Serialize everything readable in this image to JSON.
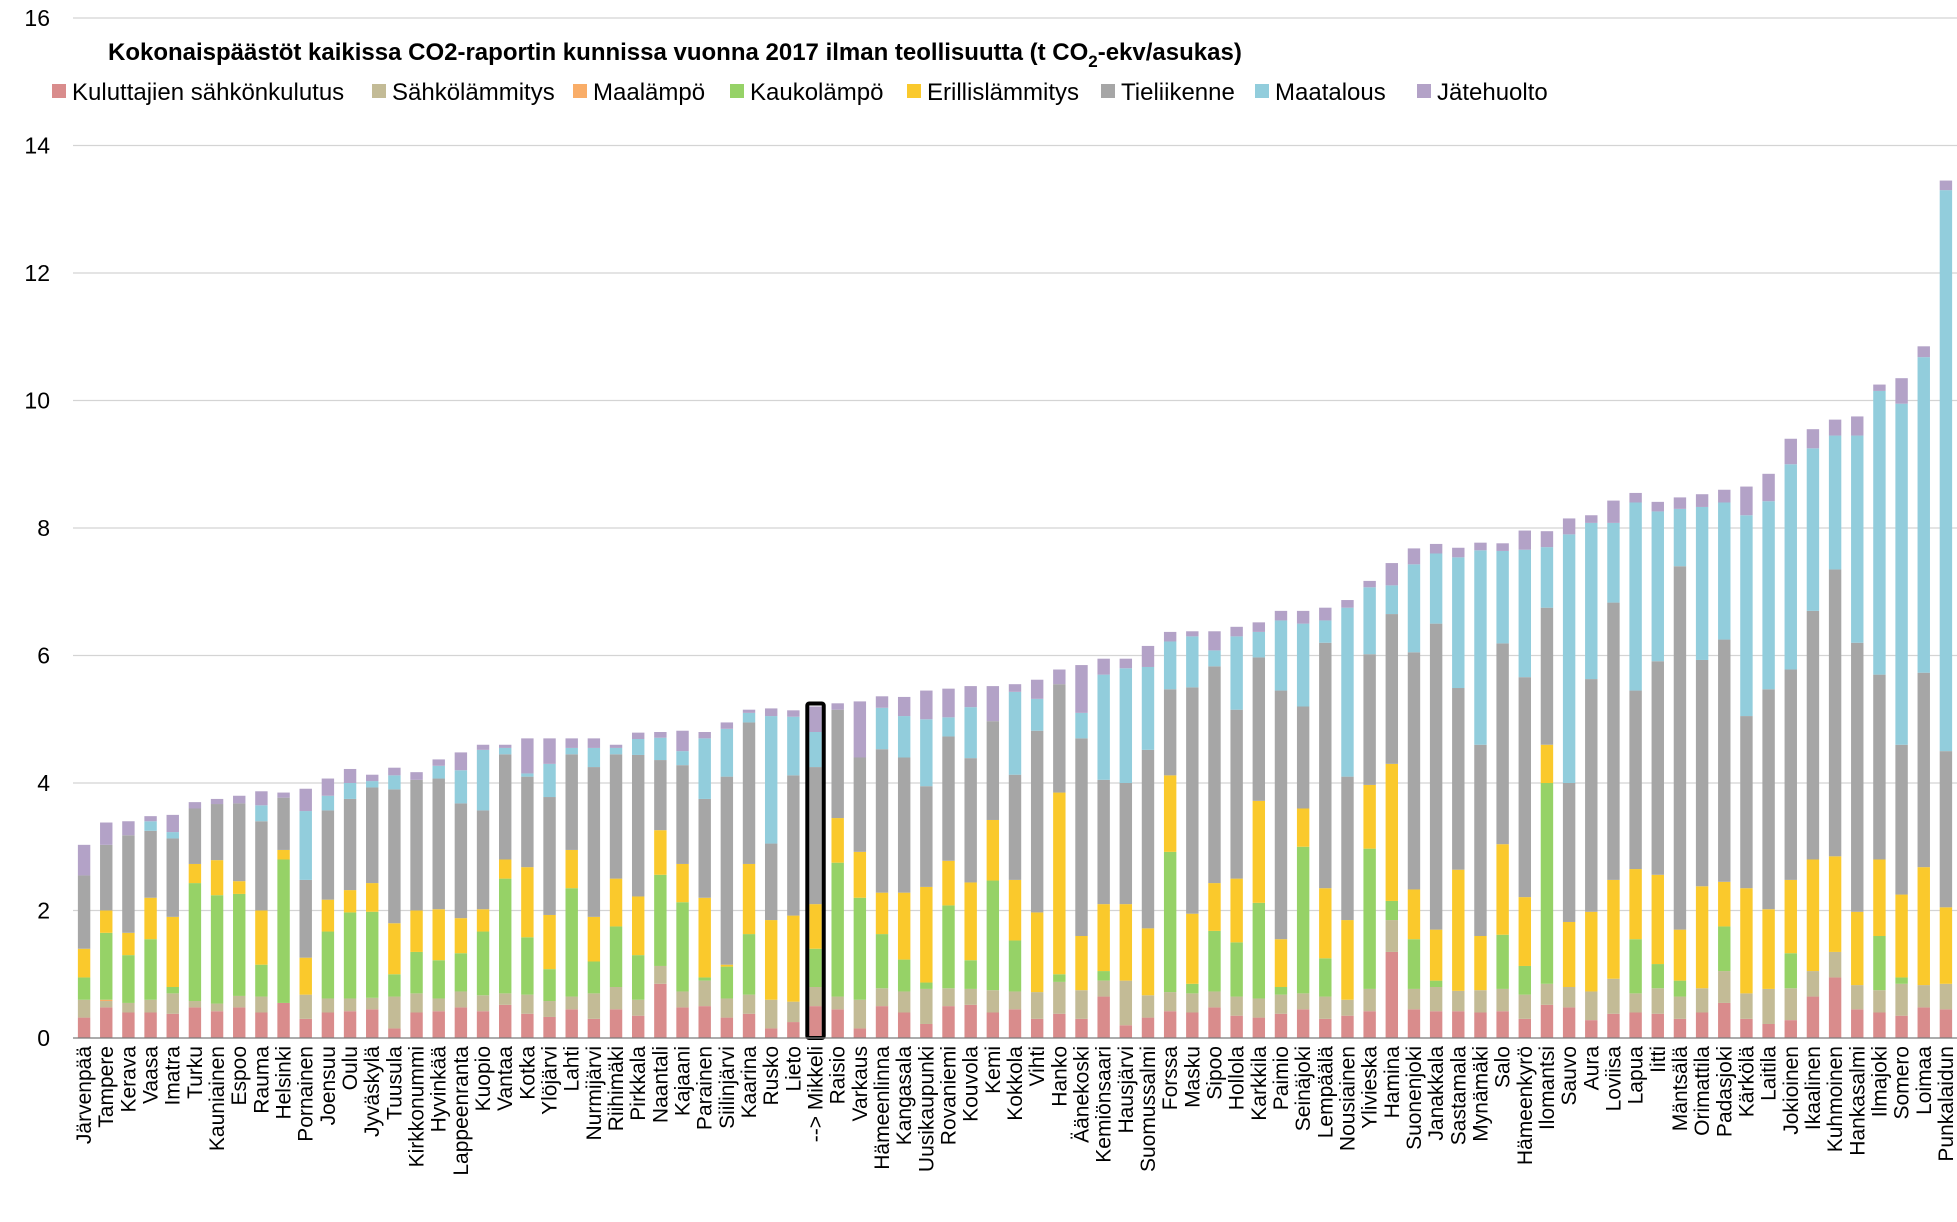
{
  "chart_data": {
    "type": "bar",
    "stacked": true,
    "title": "Kokonaispäästöt kaikissa CO2-raportin kunnissa vuonna 2017 ilman teollisuutta (t CO",
    "title_sub": "2",
    "title_end": "-ekv/asukas)",
    "ylim": [
      0,
      16
    ],
    "yticks": [
      0,
      2,
      4,
      6,
      8,
      10,
      12,
      14,
      16
    ],
    "grid": true,
    "legend_position": "top",
    "highlight_category": "--> Mikkeli",
    "series": [
      {
        "name": "Kuluttajien sähkönkulutus",
        "color": "#d98c8c"
      },
      {
        "name": "Sähkölämmitys",
        "color": "#c3bb96"
      },
      {
        "name": "Maalämpö",
        "color": "#f9ad68"
      },
      {
        "name": "Kaukolämpö",
        "color": "#96d267"
      },
      {
        "name": "Erillislämmitys",
        "color": "#fac92c"
      },
      {
        "name": "Tieliikenne",
        "color": "#a6a6a6"
      },
      {
        "name": "Maatalous",
        "color": "#92cddc"
      },
      {
        "name": "Jätehuolto",
        "color": "#b3a2c7"
      }
    ],
    "categories": [
      "Järvenpää",
      "Tampere",
      "Kerava",
      "Vaasa",
      "Imatra",
      "Turku",
      "Kauniainen",
      "Espoo",
      "Rauma",
      "Helsinki",
      "Pornainen",
      "Joensuu",
      "Oulu",
      "Jyväskylä",
      "Tuusula",
      "Kirkkonummi",
      "Hyvinkää",
      "Lappeenranta",
      "Kuopio",
      "Vantaa",
      "Kotka",
      "Ylöjärvi",
      "Lahti",
      "Nurmijärvi",
      "Riihimäki",
      "Pirkkala",
      "Naantali",
      "Kajaani",
      "Parainen",
      "Siilinjärvi",
      "Kaarina",
      "Rusko",
      "Lieto",
      "--> Mikkeli",
      "Raisio",
      "Varkaus",
      "Hämeenlinna",
      "Kangasala",
      "Uusikaupunki",
      "Rovaniemi",
      "Kouvola",
      "Kemi",
      "Kokkola",
      "Vihti",
      "Hanko",
      "Äänekoski",
      "Kemiönsaari",
      "Hausjärvi",
      "Suomussalmi",
      "Forssa",
      "Masku",
      "Sipoo",
      "Hollola",
      "Karkkila",
      "Paimio",
      "Seinäjoki",
      "Lempäälä",
      "Nousiainen",
      "Ylivieska",
      "Hamina",
      "Suonenjoki",
      "Janakkala",
      "Sastamala",
      "Mynämäki",
      "Salo",
      "Hämeenkyrö",
      "Ilomantsi",
      "Sauvo",
      "Aura",
      "Loviisa",
      "Lapua",
      "Iitti",
      "Mäntsälä",
      "Orimattila",
      "Padasjoki",
      "Kärkölä",
      "Laitila",
      "Jokioinen",
      "Ikaalinen",
      "Kuhmoinen",
      "Hankasalmi",
      "Ilmajoki",
      "Somero",
      "Loimaa",
      "Punkalaidun"
    ],
    "values": [
      [
        0.32,
        0.28,
        0.0,
        0.35,
        0.45,
        1.15,
        0.0,
        0.48
      ],
      [
        0.48,
        0.1,
        0.02,
        1.05,
        0.35,
        1.03,
        0.0,
        0.35
      ],
      [
        0.4,
        0.15,
        0.0,
        0.75,
        0.35,
        1.53,
        0.0,
        0.22
      ],
      [
        0.4,
        0.2,
        0.0,
        0.95,
        0.65,
        1.05,
        0.15,
        0.08
      ],
      [
        0.38,
        0.32,
        0.0,
        0.1,
        1.1,
        1.23,
        0.1,
        0.27
      ],
      [
        0.48,
        0.1,
        0.0,
        1.85,
        0.3,
        0.87,
        0.0,
        0.1
      ],
      [
        0.42,
        0.12,
        0.0,
        1.7,
        0.55,
        0.88,
        0.0,
        0.08
      ],
      [
        0.48,
        0.18,
        0.0,
        1.6,
        0.2,
        1.22,
        0.0,
        0.12
      ],
      [
        0.4,
        0.25,
        0.0,
        0.5,
        0.85,
        1.4,
        0.25,
        0.22
      ],
      [
        0.55,
        0.0,
        0.0,
        2.25,
        0.15,
        0.82,
        0.0,
        0.08
      ],
      [
        0.3,
        0.38,
        0.0,
        0.0,
        0.58,
        1.22,
        1.08,
        0.35
      ],
      [
        0.4,
        0.22,
        0.0,
        1.05,
        0.5,
        1.4,
        0.23,
        0.27
      ],
      [
        0.42,
        0.2,
        0.0,
        1.35,
        0.35,
        1.43,
        0.25,
        0.22
      ],
      [
        0.45,
        0.18,
        0.0,
        1.35,
        0.45,
        1.5,
        0.1,
        0.1
      ],
      [
        0.15,
        0.5,
        0.0,
        0.35,
        0.8,
        2.1,
        0.22,
        0.12
      ],
      [
        0.4,
        0.3,
        0.0,
        0.65,
        0.65,
        2.05,
        0.0,
        0.12
      ],
      [
        0.42,
        0.2,
        0.0,
        0.6,
        0.8,
        2.05,
        0.2,
        0.1
      ],
      [
        0.48,
        0.25,
        0.0,
        0.6,
        0.55,
        1.8,
        0.52,
        0.28
      ],
      [
        0.42,
        0.25,
        0.0,
        1.0,
        0.35,
        1.55,
        0.95,
        0.08
      ],
      [
        0.52,
        0.18,
        0.0,
        1.8,
        0.3,
        1.65,
        0.1,
        0.05
      ],
      [
        0.38,
        0.3,
        0.0,
        0.9,
        1.1,
        1.42,
        0.05,
        0.55
      ],
      [
        0.33,
        0.25,
        0.0,
        0.5,
        0.85,
        1.85,
        0.52,
        0.4
      ],
      [
        0.45,
        0.2,
        0.0,
        1.7,
        0.6,
        1.5,
        0.1,
        0.15
      ],
      [
        0.3,
        0.4,
        0.0,
        0.5,
        0.7,
        2.35,
        0.3,
        0.15
      ],
      [
        0.45,
        0.35,
        0.0,
        0.95,
        0.75,
        1.95,
        0.1,
        0.05
      ],
      [
        0.35,
        0.25,
        0.0,
        0.7,
        0.92,
        2.22,
        0.25,
        0.1
      ],
      [
        0.85,
        0.28,
        0.0,
        1.43,
        0.7,
        1.1,
        0.35,
        0.09
      ],
      [
        0.48,
        0.25,
        0.0,
        1.4,
        0.6,
        1.55,
        0.22,
        0.32
      ],
      [
        0.5,
        0.4,
        0.0,
        0.05,
        1.25,
        1.55,
        0.95,
        0.1
      ],
      [
        0.32,
        0.3,
        0.0,
        0.5,
        0.03,
        2.95,
        0.75,
        0.1
      ],
      [
        0.38,
        0.3,
        0.0,
        0.95,
        1.1,
        2.22,
        0.15,
        0.05
      ],
      [
        0.15,
        0.45,
        0.0,
        0.0,
        1.25,
        1.2,
        2.0,
        0.12
      ],
      [
        0.25,
        0.32,
        0.0,
        0.0,
        1.35,
        2.2,
        0.92,
        0.1
      ],
      [
        0.5,
        0.3,
        0.0,
        0.6,
        0.7,
        2.15,
        0.55,
        0.4
      ],
      [
        0.45,
        0.2,
        0.0,
        2.1,
        0.7,
        1.7,
        0.0,
        0.1
      ],
      [
        0.15,
        0.45,
        0.0,
        1.6,
        0.72,
        1.48,
        0.0,
        0.88
      ],
      [
        0.5,
        0.28,
        0.0,
        0.85,
        0.65,
        2.25,
        0.65,
        0.18
      ],
      [
        0.4,
        0.33,
        0.0,
        0.5,
        1.05,
        2.12,
        0.65,
        0.3
      ],
      [
        0.22,
        0.55,
        0.0,
        0.1,
        1.5,
        1.58,
        1.05,
        0.45
      ],
      [
        0.5,
        0.28,
        0.0,
        1.3,
        0.7,
        1.95,
        0.3,
        0.45
      ],
      [
        0.52,
        0.25,
        0.0,
        0.45,
        1.22,
        1.95,
        0.8,
        0.33
      ],
      [
        0.4,
        0.35,
        0.0,
        1.72,
        0.95,
        1.55,
        0.0,
        0.55
      ],
      [
        0.45,
        0.28,
        0.0,
        0.8,
        0.95,
        1.65,
        1.3,
        0.12
      ],
      [
        0.3,
        0.42,
        0.0,
        0.0,
        1.25,
        2.85,
        0.5,
        0.3
      ],
      [
        0.38,
        0.5,
        0.0,
        0.12,
        2.85,
        1.7,
        0.0,
        0.23
      ],
      [
        0.3,
        0.45,
        0.0,
        0.0,
        0.85,
        3.1,
        0.4,
        0.75
      ],
      [
        0.65,
        0.25,
        0.0,
        0.15,
        1.05,
        1.95,
        1.65,
        0.25
      ],
      [
        0.2,
        0.7,
        0.0,
        0.0,
        1.2,
        1.9,
        1.8,
        0.15
      ],
      [
        0.32,
        0.35,
        0.0,
        0.0,
        1.05,
        2.8,
        1.3,
        0.33
      ],
      [
        0.42,
        0.3,
        0.0,
        2.2,
        1.2,
        1.35,
        0.75,
        0.15
      ],
      [
        0.4,
        0.3,
        0.0,
        0.15,
        1.1,
        3.55,
        0.8,
        0.08
      ],
      [
        0.48,
        0.25,
        0.0,
        0.95,
        0.75,
        3.4,
        0.25,
        0.3
      ],
      [
        0.35,
        0.3,
        0.0,
        0.85,
        1.0,
        2.65,
        1.15,
        0.15
      ],
      [
        0.32,
        0.3,
        0.0,
        1.5,
        1.6,
        2.25,
        0.4,
        0.15
      ],
      [
        0.38,
        0.3,
        0.0,
        0.12,
        0.75,
        3.9,
        1.1,
        0.15
      ],
      [
        0.45,
        0.25,
        0.0,
        2.3,
        0.6,
        1.6,
        1.3,
        0.2
      ],
      [
        0.3,
        0.35,
        0.0,
        0.6,
        1.1,
        3.85,
        0.35,
        0.2
      ],
      [
        0.35,
        0.25,
        0.0,
        0.0,
        1.25,
        2.25,
        2.65,
        0.12
      ],
      [
        0.42,
        0.35,
        0.0,
        2.2,
        1.0,
        2.05,
        1.05,
        0.1
      ],
      [
        1.35,
        0.5,
        0.0,
        0.3,
        2.15,
        2.35,
        0.45,
        0.35
      ],
      [
        0.45,
        0.32,
        0.0,
        0.78,
        0.78,
        3.72,
        1.38,
        0.25
      ],
      [
        0.42,
        0.38,
        0.0,
        0.1,
        0.8,
        4.8,
        1.1,
        0.15
      ],
      [
        0.42,
        0.32,
        0.0,
        0.0,
        1.9,
        2.85,
        2.05,
        0.15
      ],
      [
        0.4,
        0.35,
        0.0,
        0.0,
        0.85,
        3.0,
        3.05,
        0.12
      ],
      [
        0.42,
        0.35,
        0.0,
        0.85,
        1.42,
        3.15,
        1.45,
        0.12
      ],
      [
        0.3,
        0.38,
        0.0,
        0.45,
        1.08,
        3.45,
        2.0,
        0.3
      ],
      [
        0.52,
        0.33,
        0.0,
        3.15,
        0.6,
        2.15,
        0.95,
        0.25
      ],
      [
        0.48,
        0.32,
        0.0,
        0.0,
        1.02,
        2.18,
        3.9,
        0.25
      ],
      [
        0.28,
        0.45,
        0.0,
        0.0,
        1.25,
        3.65,
        2.45,
        0.12
      ],
      [
        0.38,
        0.55,
        0.0,
        0.0,
        1.55,
        4.35,
        1.25,
        0.35
      ],
      [
        0.4,
        0.3,
        0.0,
        0.85,
        1.1,
        2.8,
        2.95,
        0.15
      ],
      [
        0.38,
        0.4,
        0.0,
        0.38,
        1.4,
        3.35,
        2.35,
        0.15
      ],
      [
        0.3,
        0.35,
        0.0,
        0.25,
        0.8,
        5.7,
        0.9,
        0.18
      ],
      [
        0.4,
        0.38,
        0.0,
        0.0,
        1.6,
        3.55,
        2.4,
        0.2
      ],
      [
        0.55,
        0.5,
        0.0,
        0.7,
        0.7,
        3.8,
        2.15,
        0.2
      ],
      [
        0.3,
        0.4,
        0.0,
        0.0,
        1.65,
        2.7,
        3.15,
        0.45
      ],
      [
        0.22,
        0.55,
        0.0,
        0.0,
        1.25,
        3.45,
        2.95,
        0.43
      ],
      [
        0.28,
        0.5,
        0.0,
        0.55,
        1.15,
        3.3,
        3.22,
        0.4
      ],
      [
        0.65,
        0.4,
        0.0,
        0.0,
        1.75,
        3.9,
        2.55,
        0.3
      ],
      [
        0.95,
        0.4,
        0.0,
        0.0,
        1.5,
        4.5,
        2.1,
        0.25
      ],
      [
        0.45,
        0.38,
        0.0,
        0.0,
        1.15,
        4.22,
        3.25,
        0.3
      ],
      [
        0.4,
        0.35,
        0.0,
        0.85,
        1.2,
        2.9,
        4.45,
        0.1
      ],
      [
        0.35,
        0.5,
        0.0,
        0.1,
        1.3,
        2.35,
        5.35,
        0.4
      ],
      [
        0.48,
        0.35,
        0.0,
        0.0,
        1.85,
        3.05,
        4.95,
        0.17
      ],
      [
        0.45,
        0.4,
        0.0,
        0.0,
        1.2,
        2.45,
        8.8,
        0.15
      ]
    ]
  }
}
